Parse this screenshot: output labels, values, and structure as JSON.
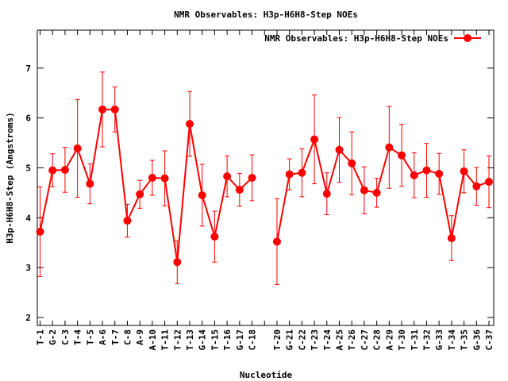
{
  "chart_data": {
    "type": "line",
    "title": "NMR Observables: H3p-H6H8-Step NOEs",
    "xlabel": "Nucleotide",
    "ylabel": "H3p-H6H8-Step (Angstroms)",
    "categories": [
      "T-1",
      "G-2",
      "C-3",
      "T-4",
      "T-5",
      "A-6",
      "T-7",
      "C-8",
      "A-9",
      "A-10",
      "T-11",
      "T-12",
      "T-13",
      "G-14",
      "T-15",
      "T-16",
      "G-17",
      "C-18",
      null,
      "T-20",
      "G-21",
      "C-22",
      "T-23",
      "T-24",
      "A-25",
      "T-26",
      "C-27",
      "C-28",
      "A-29",
      "T-30",
      "T-31",
      "T-32",
      "G-33",
      "T-34",
      "T-35",
      "G-36",
      "C-37"
    ],
    "series": [
      {
        "name": "NMR Observables: H3p-H6H8-Step NOEs",
        "color": "#ff0000",
        "values": [
          3.72,
          4.95,
          4.96,
          5.39,
          4.68,
          6.17,
          6.17,
          3.94,
          4.47,
          4.8,
          4.79,
          3.11,
          5.88,
          4.45,
          3.62,
          4.83,
          4.56,
          4.8,
          null,
          3.52,
          4.87,
          4.9,
          5.57,
          4.48,
          5.36,
          5.09,
          4.55,
          4.5,
          5.41,
          5.25,
          4.85,
          4.95,
          4.88,
          3.59,
          4.93,
          4.63,
          4.72
        ],
        "errors": [
          0.9,
          0.33,
          0.45,
          0.98,
          0.4,
          0.75,
          0.45,
          0.33,
          0.28,
          0.35,
          0.55,
          0.43,
          0.65,
          0.62,
          0.51,
          0.41,
          0.33,
          0.46,
          null,
          0.86,
          0.31,
          0.48,
          0.89,
          0.42,
          0.65,
          0.63,
          0.47,
          0.29,
          0.82,
          0.62,
          0.45,
          0.54,
          0.41,
          0.45,
          0.43,
          0.38,
          0.52
        ]
      }
    ],
    "ylim": [
      1.84,
      7.76
    ],
    "yticks": [
      2,
      3,
      4,
      5,
      6,
      7
    ],
    "grid": false,
    "legend": "top-right"
  }
}
